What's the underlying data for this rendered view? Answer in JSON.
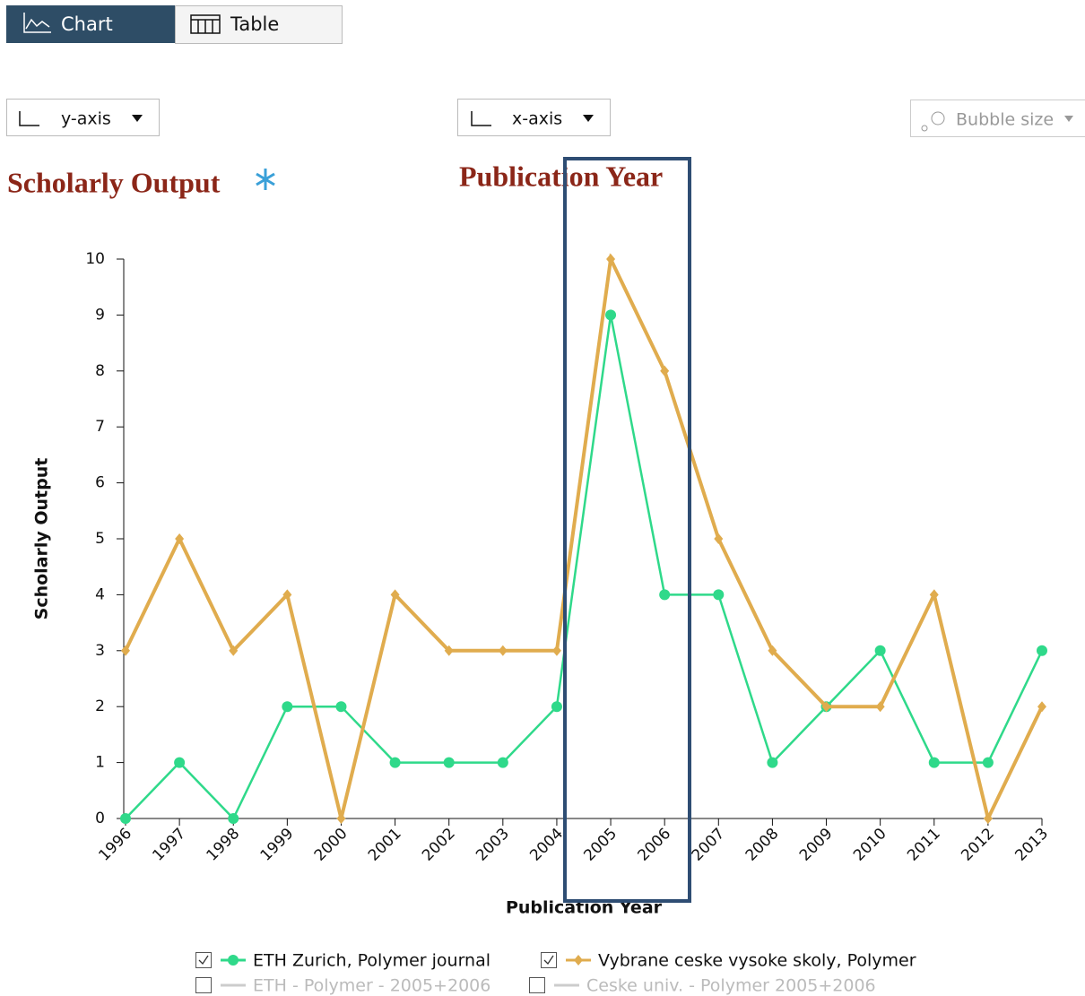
{
  "ui": {
    "tabs": [
      "Chart",
      "Table"
    ],
    "y_axis_button": "y-axis",
    "x_axis_button": "x-axis",
    "bubble_button": "Bubble size",
    "y_heading": "Scholarly Output",
    "x_heading": "Publication Year",
    "inactive_legend": [
      "ETH - Polymer - 2005+2006",
      "Ceske univ. - Polymer 2005+2006"
    ]
  },
  "chart_data": {
    "type": "line",
    "x_label": "Publication Year",
    "y_label": "Scholarly Output",
    "categories": [
      "1996",
      "1997",
      "1998",
      "1999",
      "2000",
      "2001",
      "2002",
      "2003",
      "2004",
      "2005",
      "2006",
      "2007",
      "2008",
      "2009",
      "2010",
      "2011",
      "2012",
      "2013"
    ],
    "series": [
      {
        "name": "ETH Zurich, Polymer journal",
        "color": "#2fd98a",
        "marker": "circle",
        "values": [
          0,
          1,
          0,
          2,
          2,
          1,
          1,
          1,
          2,
          9,
          4,
          4,
          1,
          2,
          3,
          1,
          1,
          3
        ]
      },
      {
        "name": "Vybrane ceske vysoke skoly, Polymer",
        "color": "#e0ac4e",
        "marker": "diamond",
        "values": [
          3,
          5,
          3,
          4,
          0,
          4,
          3,
          3,
          3,
          10,
          8,
          5,
          3,
          2,
          2,
          4,
          0,
          2
        ]
      }
    ],
    "ylim": [
      0,
      10
    ],
    "yticks": [
      0,
      1,
      2,
      3,
      4,
      5,
      6,
      7,
      8,
      9,
      10
    ]
  }
}
